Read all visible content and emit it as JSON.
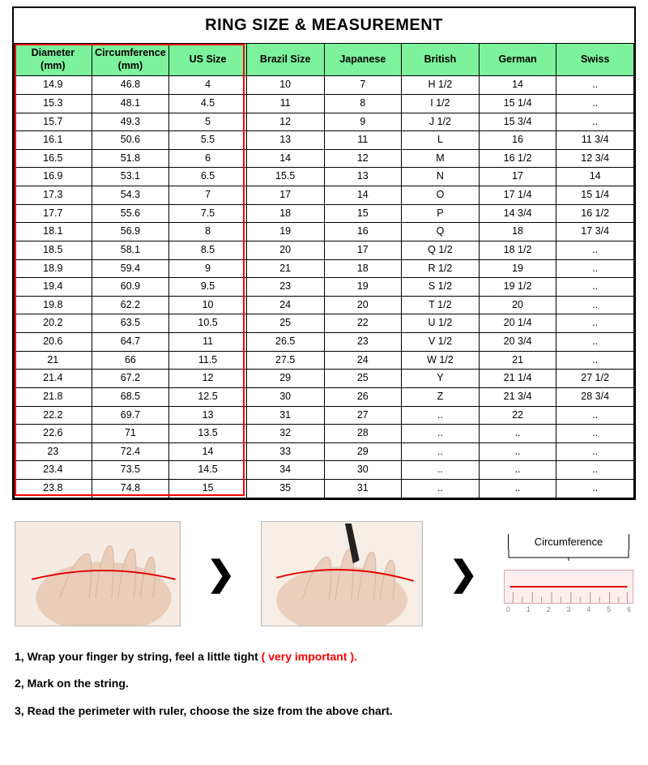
{
  "title": "RING SIZE & MEASUREMENT",
  "table": {
    "header_bg": "#7cf29c",
    "highlight_border_color": "#ff0000",
    "columns": [
      "Diameter\n(mm)",
      "Circumference\n(mm)",
      "US Size",
      "Brazil Size",
      "Japanese",
      "British",
      "German",
      "Swiss"
    ],
    "rows": [
      [
        "14.9",
        "46.8",
        "4",
        "10",
        "7",
        "H 1/2",
        "14",
        ".."
      ],
      [
        "15.3",
        "48.1",
        "4.5",
        "11",
        "8",
        "I 1/2",
        "15 1/4",
        ".."
      ],
      [
        "15.7",
        "49.3",
        "5",
        "12",
        "9",
        "J 1/2",
        "15 3/4",
        ".."
      ],
      [
        "16.1",
        "50.6",
        "5.5",
        "13",
        "11",
        "L",
        "16",
        "11 3/4"
      ],
      [
        "16.5",
        "51.8",
        "6",
        "14",
        "12",
        "M",
        "16 1/2",
        "12 3/4"
      ],
      [
        "16.9",
        "53.1",
        "6.5",
        "15.5",
        "13",
        "N",
        "17",
        "14"
      ],
      [
        "17.3",
        "54.3",
        "7",
        "17",
        "14",
        "O",
        "17 1/4",
        "15 1/4"
      ],
      [
        "17.7",
        "55.6",
        "7.5",
        "18",
        "15",
        "P",
        "14 3/4",
        "16 1/2"
      ],
      [
        "18.1",
        "56.9",
        "8",
        "19",
        "16",
        "Q",
        "18",
        "17 3/4"
      ],
      [
        "18.5",
        "58.1",
        "8.5",
        "20",
        "17",
        "Q 1/2",
        "18 1/2",
        ".."
      ],
      [
        "18.9",
        "59.4",
        "9",
        "21",
        "18",
        "R 1/2",
        "19",
        ".."
      ],
      [
        "19.4",
        "60.9",
        "9.5",
        "23",
        "19",
        "S 1/2",
        "19 1/2",
        ".."
      ],
      [
        "19.8",
        "62.2",
        "10",
        "24",
        "20",
        "T 1/2",
        "20",
        ".."
      ],
      [
        "20.2",
        "63.5",
        "10.5",
        "25",
        "22",
        "U 1/2",
        "20 1/4",
        ".."
      ],
      [
        "20.6",
        "64.7",
        "11",
        "26.5",
        "23",
        "V 1/2",
        "20 3/4",
        ".."
      ],
      [
        "21",
        "66",
        "11.5",
        "27.5",
        "24",
        "W 1/2",
        "21",
        ".."
      ],
      [
        "21.4",
        "67.2",
        "12",
        "29",
        "25",
        "Y",
        "21 1/4",
        "27 1/2"
      ],
      [
        "21.8",
        "68.5",
        "12.5",
        "30",
        "26",
        "Z",
        "21 3/4",
        "28 3/4"
      ],
      [
        "22.2",
        "69.7",
        "13",
        "31",
        "27",
        "..",
        "22",
        ".."
      ],
      [
        "22.6",
        "71",
        "13.5",
        "32",
        "28",
        "..",
        "..",
        ".."
      ],
      [
        "23",
        "72.4",
        "14",
        "33",
        "29",
        "..",
        "..",
        ".."
      ],
      [
        "23.4",
        "73.5",
        "14.5",
        "34",
        "30",
        "..",
        "..",
        ".."
      ],
      [
        "23.8",
        "74.8",
        "15",
        "35",
        "31",
        "..",
        "..",
        ".."
      ]
    ]
  },
  "ruler_label": "Circumference",
  "ruler_ticks": [
    "0",
    "1",
    "2",
    "3",
    "4",
    "5",
    "6"
  ],
  "arrow_glyph": "❯",
  "instructions": {
    "line1_pre": "1, Wrap your finger by string, feel a little tight ",
    "line1_red": "( very important ).",
    "line2": "2, Mark on the string.",
    "line3": "3, Read the perimeter with ruler, choose the size from the above chart."
  }
}
